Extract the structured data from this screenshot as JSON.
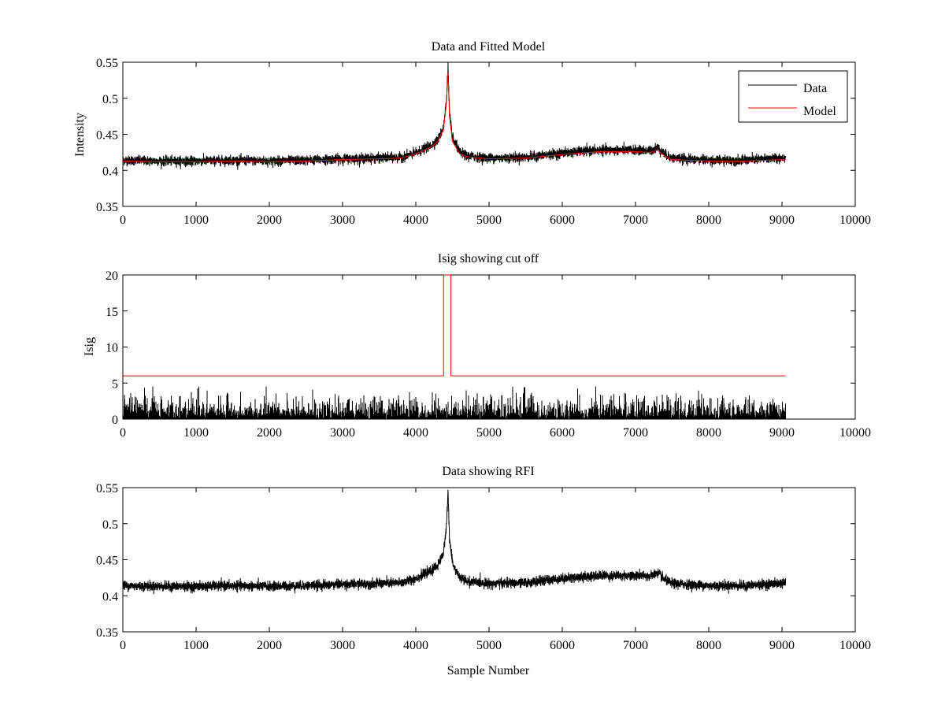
{
  "figure": {
    "background": "#ffffff"
  },
  "chart_data": [
    {
      "type": "line",
      "title": "Data and Fitted Model",
      "xlabel": "",
      "ylabel": "Intensity",
      "xlim": [
        0,
        10000
      ],
      "ylim": [
        0.35,
        0.55
      ],
      "xticks": [
        "0",
        "1000",
        "2000",
        "3000",
        "4000",
        "5000",
        "6000",
        "7000",
        "8000",
        "9000",
        "10000"
      ],
      "yticks": [
        "0.35",
        "0.4",
        "0.45",
        "0.5",
        "0.55"
      ],
      "grid": false,
      "legend": {
        "position": "top-right",
        "entries": [
          "Data",
          "Model"
        ]
      },
      "series": [
        {
          "name": "Data",
          "color": "#000000",
          "noise": 0.006,
          "x": [
            0,
            500,
            1000,
            1500,
            2000,
            2500,
            3000,
            3500,
            3800,
            4000,
            4200,
            4300,
            4380,
            4420,
            4440,
            4460,
            4500,
            4600,
            4700,
            5000,
            5500,
            6000,
            6500,
            7000,
            7200,
            7300,
            7400,
            7500,
            8000,
            8500,
            9050
          ],
          "values": [
            0.414,
            0.413,
            0.413,
            0.414,
            0.413,
            0.414,
            0.416,
            0.417,
            0.418,
            0.424,
            0.434,
            0.442,
            0.46,
            0.5,
            0.545,
            0.48,
            0.445,
            0.425,
            0.42,
            0.417,
            0.418,
            0.424,
            0.428,
            0.428,
            0.427,
            0.432,
            0.422,
            0.417,
            0.414,
            0.414,
            0.418
          ]
        },
        {
          "name": "Model",
          "color": "#ff0000",
          "noise": 0,
          "x": [
            0,
            500,
            1000,
            1500,
            2000,
            2500,
            3000,
            3500,
            3800,
            4000,
            4200,
            4300,
            4380,
            4420,
            4440,
            4460,
            4500,
            4600,
            4700,
            5000,
            5500,
            6000,
            6500,
            7000,
            7200,
            7300,
            7400,
            7500,
            8000,
            8500,
            9050
          ],
          "values": [
            0.413,
            0.412,
            0.412,
            0.413,
            0.412,
            0.413,
            0.415,
            0.416,
            0.417,
            0.423,
            0.432,
            0.44,
            0.458,
            0.495,
            0.535,
            0.475,
            0.44,
            0.423,
            0.419,
            0.416,
            0.417,
            0.422,
            0.426,
            0.426,
            0.425,
            0.428,
            0.42,
            0.415,
            0.413,
            0.413,
            0.415
          ]
        }
      ]
    },
    {
      "type": "line",
      "title": "Isig showing cut off",
      "xlabel": "",
      "ylabel": "Isig",
      "xlim": [
        0,
        10000
      ],
      "ylim": [
        0,
        20
      ],
      "xticks": [
        "0",
        "1000",
        "2000",
        "3000",
        "4000",
        "5000",
        "6000",
        "7000",
        "8000",
        "9000",
        "10000"
      ],
      "yticks": [
        "0",
        "5",
        "10",
        "15",
        "20"
      ],
      "grid": false,
      "series": [
        {
          "name": "Isig",
          "color": "#000000",
          "style": "abs-noise",
          "range": [
            0,
            9050
          ],
          "typical": 1.2,
          "max": 4.5
        },
        {
          "name": "Cut off",
          "color": "#ff0000",
          "x": [
            0,
            4380,
            4380,
            4480,
            4480,
            9050
          ],
          "values": [
            6,
            6,
            20,
            20,
            6,
            6
          ]
        }
      ]
    },
    {
      "type": "line",
      "title": "Data showing RFI",
      "xlabel": "Sample Number",
      "ylabel": "",
      "xlim": [
        0,
        10000
      ],
      "ylim": [
        0.35,
        0.55
      ],
      "xticks": [
        "0",
        "1000",
        "2000",
        "3000",
        "4000",
        "5000",
        "6000",
        "7000",
        "8000",
        "9000",
        "10000"
      ],
      "yticks": [
        "0.35",
        "0.4",
        "0.45",
        "0.5",
        "0.55"
      ],
      "grid": false,
      "series": [
        {
          "name": "Data",
          "color": "#000000",
          "noise": 0.006,
          "x": [
            0,
            500,
            1000,
            1500,
            2000,
            2500,
            3000,
            3500,
            3800,
            4000,
            4200,
            4300,
            4380,
            4420,
            4440,
            4460,
            4500,
            4600,
            4700,
            5000,
            5500,
            6000,
            6500,
            7000,
            7200,
            7300,
            7400,
            7500,
            8000,
            8500,
            9050
          ],
          "values": [
            0.414,
            0.413,
            0.413,
            0.414,
            0.413,
            0.414,
            0.416,
            0.417,
            0.418,
            0.424,
            0.434,
            0.442,
            0.46,
            0.5,
            0.545,
            0.48,
            0.445,
            0.425,
            0.42,
            0.417,
            0.418,
            0.424,
            0.428,
            0.428,
            0.427,
            0.432,
            0.422,
            0.417,
            0.414,
            0.414,
            0.418
          ]
        }
      ]
    }
  ]
}
